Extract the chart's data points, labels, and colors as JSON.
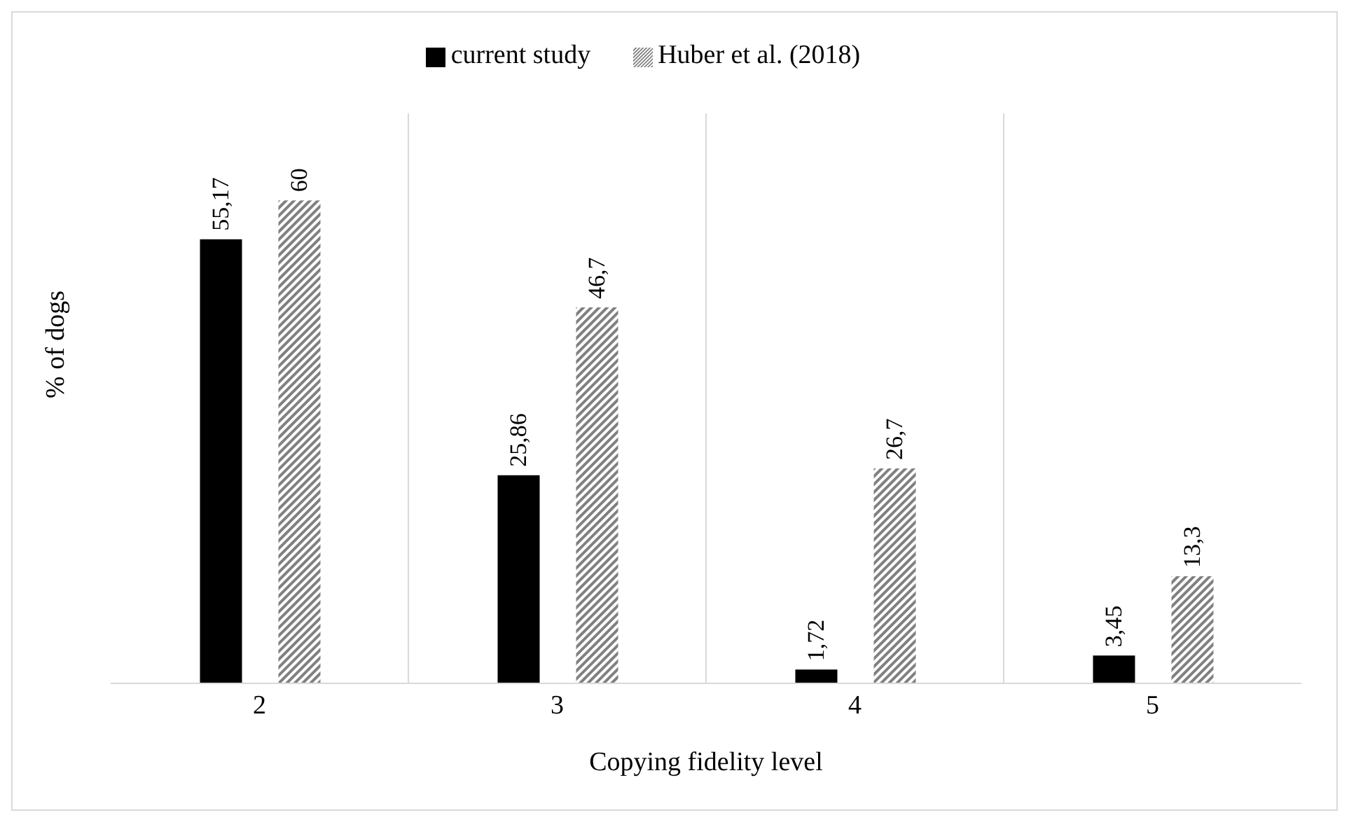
{
  "chart_data": {
    "type": "bar",
    "xlabel": "Copying fidelity level",
    "ylabel": "% of dogs",
    "categories": [
      "2",
      "3",
      "4",
      "5"
    ],
    "series": [
      {
        "name": "current study",
        "color": "#000000",
        "values": [
          55.17,
          25.86,
          1.72,
          3.45
        ],
        "value_labels": [
          "55,17",
          "25,86",
          "1,72",
          "3,45"
        ]
      },
      {
        "name": "Huber et al. (2018)",
        "color": "#808080",
        "values": [
          60,
          46.7,
          26.7,
          13.3
        ],
        "value_labels": [
          "60",
          "46,7",
          "26,7",
          "13,3"
        ]
      }
    ],
    "grid": "x",
    "legend": "top",
    "tick_labels": "x"
  }
}
